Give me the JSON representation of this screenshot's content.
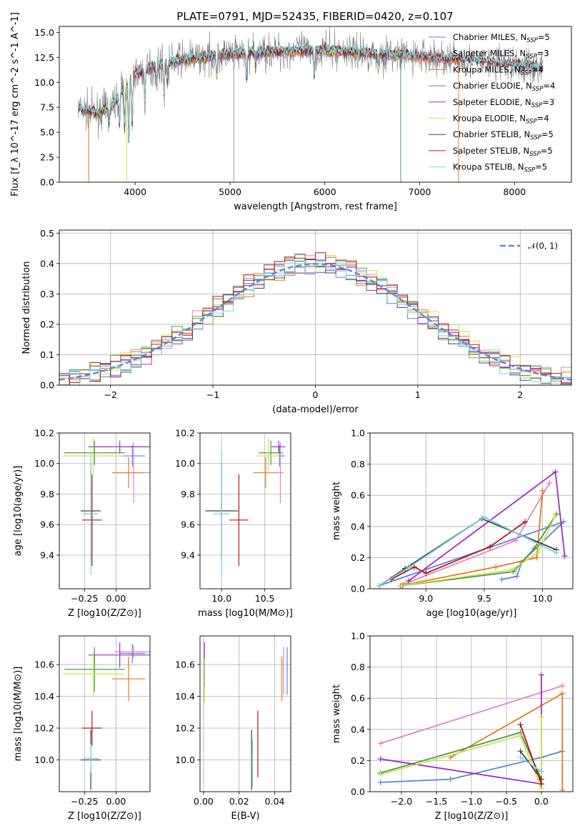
{
  "figure": {
    "title": "PLATE=0791, MJD=52435, FIBERID=0420, z=0.107"
  },
  "models": [
    {
      "label": "Chabrier MILES, N_SSP=5",
      "imf": "Chabrier",
      "lib": "MILES",
      "nssp": 5,
      "color": "#5b86d6"
    },
    {
      "label": "Salpeter MILES, N_SSP=3",
      "imf": "Salpeter",
      "lib": "MILES",
      "nssp": 3,
      "color": "#e381c6"
    },
    {
      "label": "Kroupa MILES, N_SSP=4",
      "imf": "Kroupa",
      "lib": "MILES",
      "nssp": 4,
      "color": "#e07c1f"
    },
    {
      "label": "Chabrier ELODIE, N_SSP=4",
      "imf": "Chabrier",
      "lib": "ELODIE",
      "nssp": 4,
      "color": "#4b9a4b"
    },
    {
      "label": "Salpeter ELODIE, N_SSP=3",
      "imf": "Salpeter",
      "lib": "ELODIE",
      "nssp": 3,
      "color": "#9b30c0"
    },
    {
      "label": "Kroupa ELODIE, N_SSP=4",
      "imf": "Kroupa",
      "lib": "ELODIE",
      "nssp": 4,
      "color": "#cfe24a"
    },
    {
      "label": "Chabrier STELIB, N_SSP=5",
      "imf": "Chabrier",
      "lib": "STELIB",
      "nssp": 5,
      "color": "#444444"
    },
    {
      "label": "Salpeter STELIB, N_SSP=5",
      "imf": "Salpeter",
      "lib": "STELIB",
      "nssp": 5,
      "color": "#b01818"
    },
    {
      "label": "Kroupa STELIB, N_SSP=5",
      "imf": "Kroupa",
      "lib": "STELIB",
      "nssp": 5,
      "color": "#7ad3e0"
    }
  ],
  "chart_data": [
    {
      "id": "spectrum",
      "type": "line",
      "title": "PLATE=0791, MJD=52435, FIBERID=0420, z=0.107",
      "xlabel": "wavelength [Angstrom, rest frame]",
      "ylabel": "Flux [f_λ 10^-17 erg cm^-2 s^-1 A^-1]",
      "xlim": [
        3200,
        8600
      ],
      "ylim": [
        0,
        15.6
      ],
      "xticks": [
        4000,
        5000,
        6000,
        7000,
        8000
      ],
      "yticks": [
        0.0,
        2.5,
        5.0,
        7.5,
        10.0,
        12.5,
        15.0
      ],
      "legend": "right",
      "continuum": {
        "x": [
          3400,
          3600,
          3750,
          3900,
          4000,
          4200,
          4500,
          5000,
          5500,
          6000,
          6500,
          7000,
          7500,
          8000,
          8300
        ],
        "y": [
          7.3,
          6.9,
          7.6,
          9.6,
          10.8,
          11.6,
          12.3,
          12.8,
          13.1,
          13.2,
          12.9,
          12.6,
          12.2,
          11.7,
          11.5
        ]
      },
      "gaps": [
        3510,
        3910,
        5040,
        6800,
        7410
      ]
    },
    {
      "id": "residuals",
      "type": "line",
      "xlabel": "(data-model)/error",
      "ylabel": "Normed distribution",
      "xlim": [
        -2.5,
        2.5
      ],
      "ylim": [
        0,
        0.51
      ],
      "xticks": [
        -2,
        -1,
        0,
        1,
        2
      ],
      "yticks": [
        0.0,
        0.1,
        0.2,
        0.3,
        0.4,
        0.5
      ],
      "legend": "top-right",
      "reference": {
        "label": "𝒩(0, 1)",
        "mean": 0,
        "sigma": 1,
        "color": "#5b86d6"
      },
      "bin_width": 0.1
    },
    {
      "id": "age-vs-Z",
      "type": "scatter",
      "xlabel": "Z [log10(Z/Z⊙)]",
      "ylabel": "age [log10(age/yr)]",
      "xlim": [
        -0.45,
        0.27
      ],
      "ylim": [
        9.18,
        10.2
      ],
      "xticks": [
        -0.25,
        0.0
      ],
      "yticks": [
        9.4,
        9.6,
        9.8,
        10.0,
        10.2
      ],
      "points": [
        {
          "x": 0.13,
          "y": 10.05,
          "xerr": 0.1,
          "yerr": 0.07
        },
        {
          "x": 0.14,
          "y": 9.94,
          "xerr": 0.15,
          "yerr": 0.2
        },
        {
          "x": 0.1,
          "y": 9.94,
          "xerr": 0.13,
          "yerr": 0.1
        },
        {
          "x": -0.17,
          "y": 10.07,
          "xerr": 0.24,
          "yerr": 0.08
        },
        {
          "x": 0.03,
          "y": 10.11,
          "xerr": 0.25,
          "yerr": 0.04
        },
        {
          "x": -0.18,
          "y": 10.05,
          "xerr": 0.24,
          "yerr": 0.12
        },
        {
          "x": -0.2,
          "y": 9.69,
          "xerr": 0.08,
          "yerr": 0.31
        },
        {
          "x": -0.19,
          "y": 9.63,
          "xerr": 0.08,
          "yerr": 0.3
        },
        {
          "x": -0.2,
          "y": 9.67,
          "xerr": 0.06,
          "yerr": 0.4
        }
      ]
    },
    {
      "id": "age-vs-mass",
      "type": "scatter",
      "xlabel": "mass [log10(M/M⊙)]",
      "ylabel": "",
      "xlim": [
        9.75,
        10.8
      ],
      "ylim": [
        9.18,
        10.2
      ],
      "xticks": [
        10.0,
        10.5
      ],
      "yticks": [
        9.4,
        9.6,
        9.8,
        10.0,
        10.2
      ],
      "points": [
        {
          "x": 10.67,
          "y": 10.05,
          "xerr": 0.06,
          "yerr": 0.07
        },
        {
          "x": 10.68,
          "y": 9.94,
          "xerr": 0.04,
          "yerr": 0.2
        },
        {
          "x": 10.51,
          "y": 9.94,
          "xerr": 0.14,
          "yerr": 0.1
        },
        {
          "x": 10.57,
          "y": 10.07,
          "xerr": 0.14,
          "yerr": 0.08
        },
        {
          "x": 10.66,
          "y": 10.11,
          "xerr": 0.08,
          "yerr": 0.04
        },
        {
          "x": 10.54,
          "y": 10.05,
          "xerr": 0.14,
          "yerr": 0.12
        },
        {
          "x": 10.0,
          "y": 9.69,
          "xerr": 0.19,
          "yerr": 0.31
        },
        {
          "x": 10.2,
          "y": 9.63,
          "xerr": 0.11,
          "yerr": 0.3
        },
        {
          "x": 10.0,
          "y": 9.67,
          "xerr": 0.09,
          "yerr": 0.4
        }
      ]
    },
    {
      "id": "weight-vs-age",
      "type": "line",
      "xlabel": "age [log10(age/yr)]",
      "ylabel": "mass weight",
      "xlim": [
        8.52,
        10.26
      ],
      "ylim": [
        0,
        1.0
      ],
      "xticks": [
        9.0,
        9.5,
        10.0
      ],
      "yticks": [
        0.0,
        0.2,
        0.4,
        0.6,
        0.8,
        1.0
      ],
      "series": [
        {
          "x": [
            9.65,
            9.78,
            9.82,
            10.18,
            8.6
          ],
          "y": [
            0.06,
            0.08,
            0.17,
            0.43,
            0.02
          ]
        },
        {
          "x": [
            8.81,
            9.77,
            10.06
          ],
          "y": [
            0.03,
            0.31,
            0.68
          ]
        },
        {
          "x": [
            8.78,
            9.6,
            9.95,
            10.0
          ],
          "y": [
            0.02,
            0.14,
            0.2,
            0.63
          ]
        },
        {
          "x": [
            8.8,
            9.75,
            9.93,
            10.12
          ],
          "y": [
            0.02,
            0.11,
            0.26,
            0.48
          ]
        },
        {
          "x": [
            8.85,
            10.11,
            10.19
          ],
          "y": [
            0.05,
            0.75,
            0.21
          ]
        },
        {
          "x": [
            8.79,
            9.73,
            9.96,
            10.11
          ],
          "y": [
            0.02,
            0.12,
            0.23,
            0.47
          ]
        },
        {
          "x": [
            8.6,
            8.82,
            9.48,
            10.12
          ],
          "y": [
            0.02,
            0.13,
            0.45,
            0.25
          ]
        },
        {
          "x": [
            8.7,
            8.9,
            9.0,
            9.55,
            9.85
          ],
          "y": [
            0.06,
            0.14,
            0.1,
            0.27,
            0.43
          ]
        },
        {
          "x": [
            8.6,
            8.86,
            9.5,
            10.12
          ],
          "y": [
            0.02,
            0.14,
            0.46,
            0.23
          ]
        }
      ]
    },
    {
      "id": "mass-vs-Z",
      "type": "scatter",
      "xlabel": "Z [log10(Z/Z⊙)]",
      "ylabel": "mass [log10(M/M⊙)]",
      "xlim": [
        -0.45,
        0.27
      ],
      "ylim": [
        9.8,
        10.78
      ],
      "xticks": [
        -0.25,
        0.0
      ],
      "yticks": [
        10.0,
        10.2,
        10.4,
        10.6
      ],
      "points": [
        {
          "x": 0.13,
          "y": 10.67,
          "xerr": 0.1,
          "yerr": 0.06
        },
        {
          "x": 0.14,
          "y": 10.68,
          "xerr": 0.15,
          "yerr": 0.04
        },
        {
          "x": 0.1,
          "y": 10.51,
          "xerr": 0.13,
          "yerr": 0.14
        },
        {
          "x": -0.17,
          "y": 10.57,
          "xerr": 0.24,
          "yerr": 0.14
        },
        {
          "x": 0.03,
          "y": 10.66,
          "xerr": 0.25,
          "yerr": 0.08
        },
        {
          "x": -0.18,
          "y": 10.54,
          "xerr": 0.24,
          "yerr": 0.14
        },
        {
          "x": -0.2,
          "y": 10.0,
          "xerr": 0.08,
          "yerr": 0.19
        },
        {
          "x": -0.19,
          "y": 10.2,
          "xerr": 0.08,
          "yerr": 0.11
        },
        {
          "x": -0.2,
          "y": 10.01,
          "xerr": 0.06,
          "yerr": 0.09
        }
      ]
    },
    {
      "id": "mass-vs-EBV",
      "type": "scatter",
      "xlabel": "E(B-V)",
      "ylabel": "",
      "xlim": [
        -0.002,
        0.049
      ],
      "ylim": [
        9.8,
        10.78
      ],
      "xticks": [
        0.0,
        0.02,
        0.04
      ],
      "yticks": [
        10.0,
        10.2,
        10.4,
        10.6
      ],
      "points": [
        {
          "x": 0.047,
          "y": 10.56,
          "xerr": 0,
          "yerr": 0.15
        },
        {
          "x": 0.045,
          "y": 10.56,
          "xerr": 0,
          "yerr": 0.15
        },
        {
          "x": 0.044,
          "y": 10.51,
          "xerr": 0,
          "yerr": 0.14
        },
        {
          "x": 0.0003,
          "y": 10.5,
          "xerr": 0,
          "yerr": 0.14
        },
        {
          "x": 0.0005,
          "y": 10.6,
          "xerr": 0,
          "yerr": 0.14
        },
        {
          "x": 0.0004,
          "y": 10.5,
          "xerr": 0,
          "yerr": 0.14
        },
        {
          "x": 0.027,
          "y": 10.0,
          "xerr": 0,
          "yerr": 0.19
        },
        {
          "x": 0.0305,
          "y": 10.1,
          "xerr": 0,
          "yerr": 0.21
        },
        {
          "x": 0.0275,
          "y": 9.98,
          "xerr": 0,
          "yerr": 0.15
        }
      ]
    },
    {
      "id": "weight-vs-Z",
      "type": "line",
      "xlabel": "Z [log10(Z/Z⊙)]",
      "ylabel": "mass weight",
      "xlim": [
        -2.45,
        0.45
      ],
      "ylim": [
        0,
        1.0
      ],
      "xticks": [
        -2.0,
        -1.5,
        -1.0,
        -0.5,
        0.0
      ],
      "yticks": [
        0.0,
        0.2,
        0.4,
        0.6,
        0.8,
        1.0
      ],
      "series": [
        {
          "x": [
            -2.3,
            -1.3,
            0.0,
            0.3
          ],
          "y": [
            0.06,
            0.08,
            0.22,
            0.26
          ]
        },
        {
          "x": [
            -2.3,
            0.3
          ],
          "y": [
            0.31,
            0.68
          ]
        },
        {
          "x": [
            -1.3,
            0.3,
            0.3
          ],
          "y": [
            0.22,
            0.63,
            0.01
          ]
        },
        {
          "x": [
            -2.3,
            -0.3,
            0.0
          ],
          "y": [
            0.12,
            0.38,
            0.08
          ]
        },
        {
          "x": [
            -2.3,
            0.0,
            0.0
          ],
          "y": [
            0.21,
            0.05,
            0.75
          ]
        },
        {
          "x": [
            -2.3,
            -0.3,
            0.0,
            0.0
          ],
          "y": [
            0.11,
            0.36,
            0.02,
            0.48
          ]
        },
        {
          "x": [
            -0.3,
            0.0
          ],
          "y": [
            0.26,
            0.08
          ]
        },
        {
          "x": [
            -0.3,
            0.0
          ],
          "y": [
            0.43,
            0.05
          ]
        },
        {
          "x": [
            -0.3,
            0.0
          ],
          "y": [
            0.22,
            0.13
          ]
        }
      ]
    }
  ]
}
